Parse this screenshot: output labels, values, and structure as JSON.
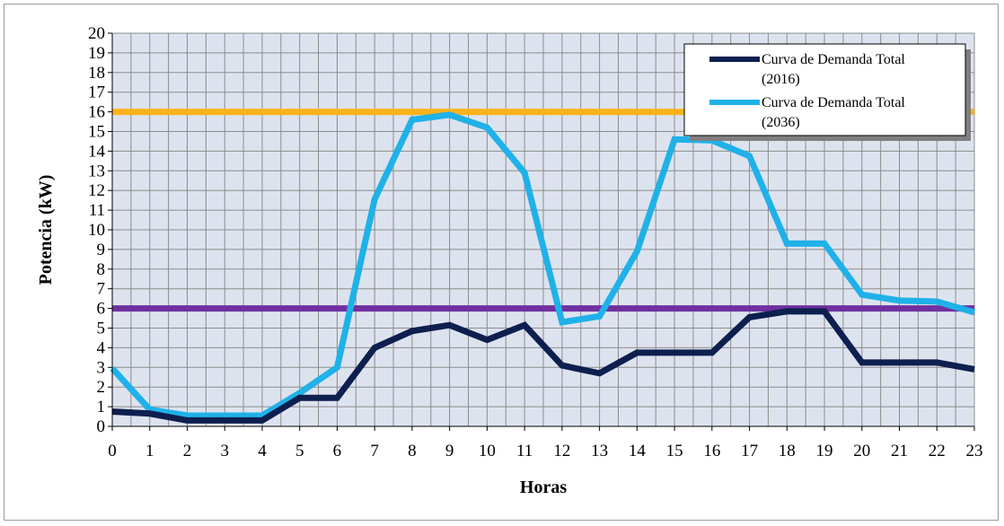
{
  "chart_data": {
    "type": "line",
    "title": "",
    "xlabel": "Horas",
    "ylabel": "Potencia (kW)",
    "x": [
      0,
      1,
      2,
      3,
      4,
      5,
      6,
      7,
      8,
      9,
      10,
      11,
      12,
      13,
      14,
      15,
      16,
      17,
      18,
      19,
      20,
      21,
      22,
      23
    ],
    "xlim": [
      0,
      23
    ],
    "ylim": [
      0,
      20
    ],
    "yticks": [
      0,
      1,
      2,
      3,
      4,
      5,
      6,
      7,
      8,
      9,
      10,
      11,
      12,
      13,
      14,
      15,
      16,
      17,
      18,
      19,
      20
    ],
    "grid": true,
    "legend_position": "top-right",
    "series": [
      {
        "name": "Curva de Demanda Total (2016)",
        "legend_lines": [
          "Curva de Demanda Total",
          "(2016)"
        ],
        "color": "#0d1f4f",
        "values": [
          0.75,
          0.65,
          0.3,
          0.3,
          0.3,
          1.45,
          1.45,
          4.0,
          4.85,
          5.15,
          4.4,
          5.15,
          3.1,
          2.7,
          3.75,
          3.75,
          3.75,
          5.55,
          5.85,
          5.85,
          3.25,
          3.25,
          3.25,
          2.9
        ]
      },
      {
        "name": "Curva de Demanda Total (2036)",
        "legend_lines": [
          "Curva de Demanda Total",
          "(2036)"
        ],
        "color": "#1fb1e8",
        "values": [
          2.95,
          0.85,
          0.55,
          0.55,
          0.55,
          1.7,
          3.0,
          11.55,
          15.6,
          15.85,
          15.2,
          12.9,
          5.3,
          5.6,
          8.9,
          14.6,
          14.55,
          13.75,
          9.3,
          9.3,
          6.7,
          6.4,
          6.35,
          5.8
        ]
      }
    ],
    "reference_lines": [
      {
        "y": 16,
        "color": "#fbb21a"
      },
      {
        "y": 6,
        "color": "#7030a0"
      }
    ]
  }
}
